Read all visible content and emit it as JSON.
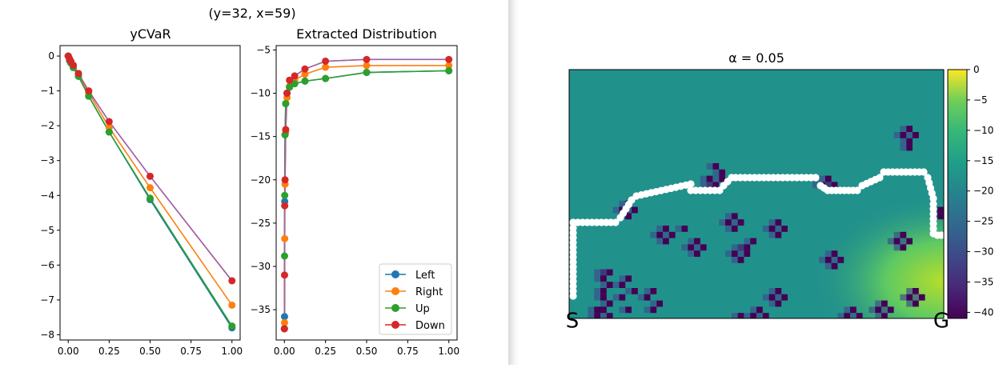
{
  "figure": {
    "suptitle": "(y=32, x=59)"
  },
  "chart_data": [
    {
      "type": "line",
      "title": "yCVaR",
      "xlabel": "",
      "ylabel": "",
      "xlim": [
        -0.05,
        1.05
      ],
      "ylim": [
        -8.15,
        0.3
      ],
      "xticks": [
        "0.00",
        "0.25",
        "0.50",
        "0.75",
        "1.00"
      ],
      "xtick_values": [
        0,
        0.25,
        0.5,
        0.75,
        1.0
      ],
      "yticks": [
        "0",
        "−1",
        "−2",
        "−3",
        "−4",
        "−5",
        "−6",
        "−7",
        "−8"
      ],
      "ytick_values": [
        0,
        -1,
        -2,
        -3,
        -4,
        -5,
        -6,
        -7,
        -8
      ],
      "x": [
        0,
        0.008,
        0.016,
        0.031,
        0.0625,
        0.125,
        0.25,
        0.5,
        1.0
      ],
      "series": [
        {
          "name": "Left",
          "color": "#1f77b4",
          "values": [
            0,
            -0.13,
            -0.2,
            -0.33,
            -0.58,
            -1.15,
            -2.18,
            -4.12,
            -7.8
          ]
        },
        {
          "name": "Right",
          "color": "#ff7f0e",
          "values": [
            0,
            -0.1,
            -0.17,
            -0.28,
            -0.52,
            -1.05,
            -2.05,
            -3.78,
            -7.15
          ]
        },
        {
          "name": "Up",
          "color": "#2ca02c",
          "values": [
            0,
            -0.13,
            -0.2,
            -0.33,
            -0.58,
            -1.15,
            -2.18,
            -4.08,
            -7.75
          ]
        },
        {
          "name": "Down",
          "color": "#d62728",
          "values": [
            0,
            -0.08,
            -0.15,
            -0.26,
            -0.5,
            -1.0,
            -1.88,
            -3.45,
            -6.45
          ]
        }
      ],
      "legend": "none"
    },
    {
      "type": "line",
      "title": "Extracted Distribution",
      "xlabel": "",
      "ylabel": "",
      "xlim": [
        -0.05,
        1.05
      ],
      "ylim": [
        -38.5,
        -4.5
      ],
      "xticks": [
        "0.00",
        "0.25",
        "0.50",
        "0.75",
        "1.00"
      ],
      "xtick_values": [
        0,
        0.25,
        0.5,
        0.75,
        1.0
      ],
      "yticks": [
        "−5",
        "−10",
        "−15",
        "−20",
        "−25",
        "−30",
        "−35"
      ],
      "ytick_values": [
        -5,
        -10,
        -15,
        -20,
        -25,
        -30,
        -35
      ],
      "x": [
        0,
        0.001,
        0.002,
        0.004,
        0.008,
        0.016,
        0.031,
        0.0625,
        0.125,
        0.25,
        0.5,
        1.0
      ],
      "series": [
        {
          "name": "Left",
          "color": "#1f77b4",
          "values": [
            -37.2,
            -35.8,
            -22.5,
            -14.8,
            -11.2,
            -10.0,
            -9.3,
            -8.9,
            -8.6,
            -8.3,
            -7.6,
            -7.4
          ]
        },
        {
          "name": "Right",
          "color": "#ff7f0e",
          "values": [
            -37.2,
            -36.5,
            -26.8,
            -20.5,
            -14.5,
            -10.5,
            -9.2,
            -8.5,
            -7.8,
            -7.0,
            -6.8,
            -6.8
          ]
        },
        {
          "name": "Up",
          "color": "#2ca02c",
          "values": [
            -37.2,
            -28.8,
            -21.8,
            -14.8,
            -11.2,
            -10.0,
            -9.3,
            -8.9,
            -8.6,
            -8.3,
            -7.6,
            -7.4
          ]
        },
        {
          "name": "Down",
          "color": "#d62728",
          "values": [
            -37.2,
            -31.0,
            -23.0,
            -20.0,
            -14.2,
            -10.0,
            -8.5,
            -8.0,
            -7.2,
            -6.3,
            -6.1,
            -6.1
          ]
        }
      ],
      "legend": "lower-right",
      "legend_entries": [
        "Left",
        "Right",
        "Up",
        "Down"
      ]
    },
    {
      "type": "heatmap",
      "title": "α = 0.05",
      "colorbar_ticks": [
        "0",
        "−5",
        "−10",
        "−15",
        "−20",
        "−25",
        "−30",
        "−35",
        "−40"
      ],
      "colorbar_tick_values": [
        0,
        -5,
        -10,
        -15,
        -20,
        -25,
        -30,
        -35,
        -40
      ],
      "colorbar_range": [
        -41,
        0
      ],
      "colormap": "viridis",
      "start_label": "S",
      "goal_label": "G",
      "path_color": "#ffffff"
    }
  ]
}
